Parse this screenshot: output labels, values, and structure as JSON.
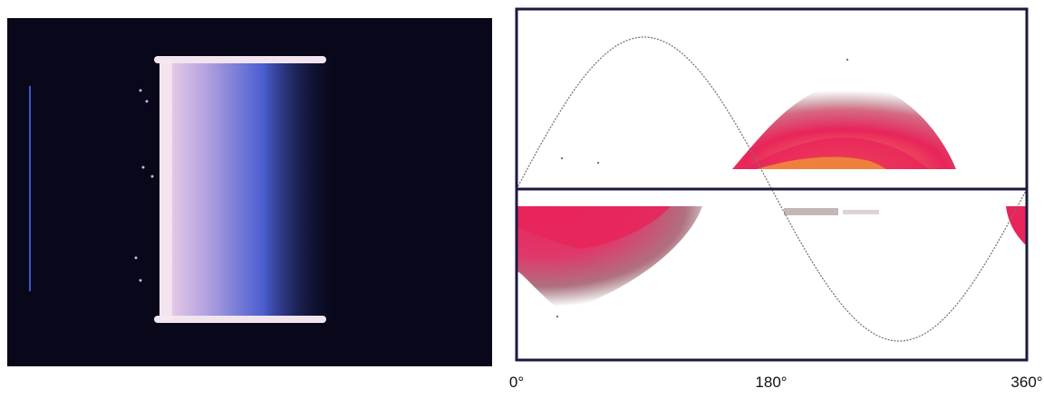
{
  "figure": {
    "axis_labels": [
      "0°",
      "180°",
      "360°"
    ]
  }
}
